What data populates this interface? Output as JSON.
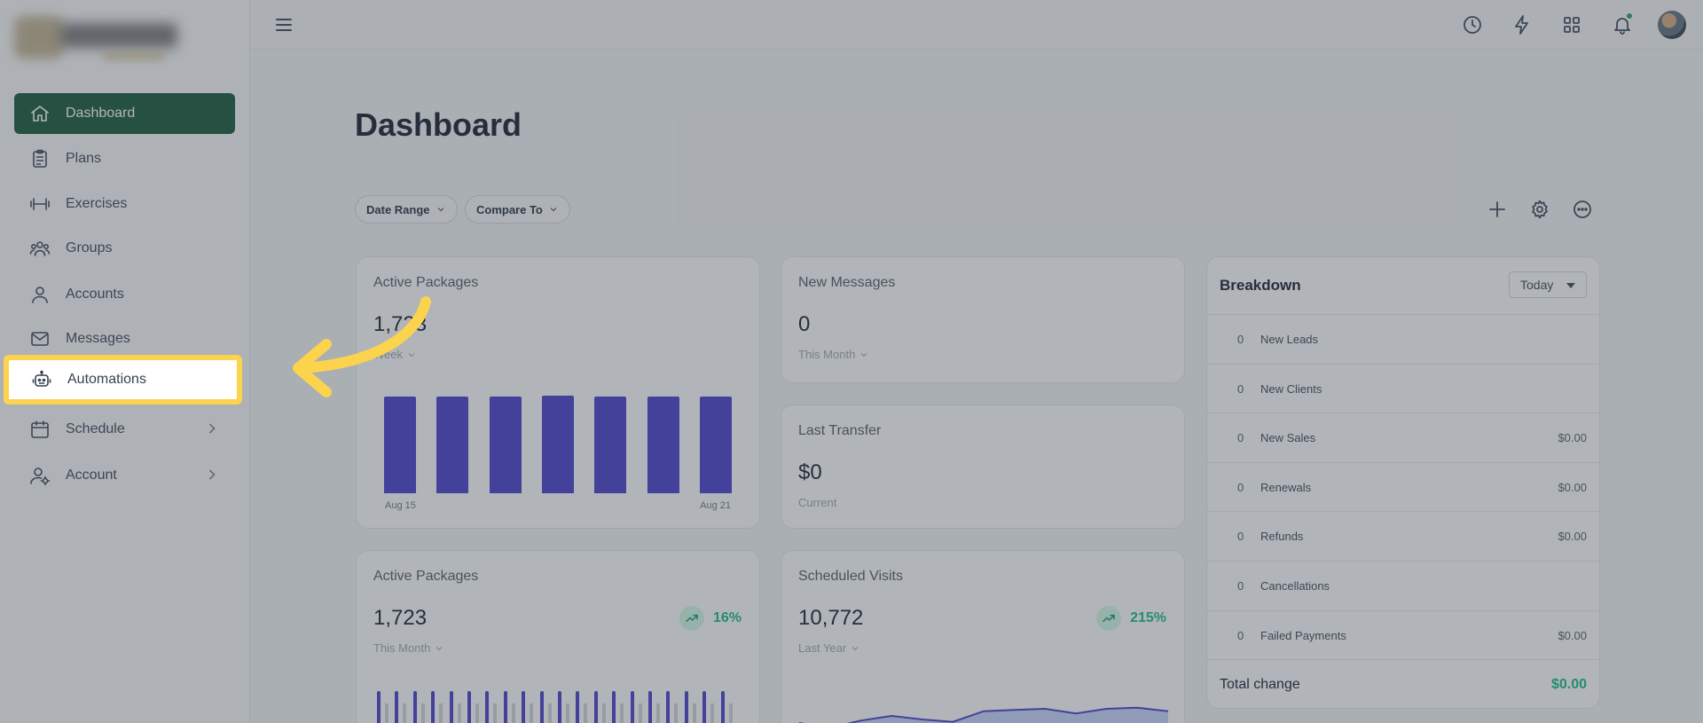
{
  "sidebar": {
    "items": [
      {
        "label": "Dashboard",
        "icon": "home-icon"
      },
      {
        "label": "Plans",
        "icon": "clipboard-icon"
      },
      {
        "label": "Exercises",
        "icon": "dumbbell-icon"
      },
      {
        "label": "Groups",
        "icon": "users-icon"
      },
      {
        "label": "Accounts",
        "icon": "user-icon"
      },
      {
        "label": "Messages",
        "icon": "mail-icon"
      },
      {
        "label": "Automations",
        "icon": "robot-icon"
      },
      {
        "label": "Schedule",
        "icon": "calendar-icon"
      },
      {
        "label": "Account",
        "icon": "user-gear-icon"
      }
    ]
  },
  "topbar": {
    "icons": [
      "menu-icon",
      "clock-icon",
      "bolt-icon",
      "grid-icon",
      "bell-icon",
      "avatar"
    ]
  },
  "main": {
    "title": "Dashboard",
    "filters": {
      "date_range": "Date Range",
      "compare_to": "Compare To"
    },
    "toolbar_icons": [
      "plus-icon",
      "gear-icon",
      "more-icon"
    ]
  },
  "cards": {
    "active_packages_1": {
      "title": "Active Packages",
      "value": "1,723",
      "sub": "Week",
      "axis_start": "Aug 15",
      "axis_end": "Aug 21",
      "chart_data": {
        "type": "bar",
        "values": [
          100,
          100,
          100,
          101,
          100,
          100,
          100
        ]
      }
    },
    "new_messages": {
      "title": "New Messages",
      "value": "0",
      "sub": "This Month"
    },
    "last_transfer": {
      "title": "Last Transfer",
      "value": "$0",
      "sub": "Current"
    },
    "active_packages_2": {
      "title": "Active Packages",
      "value": "1,723",
      "sub": "This Month",
      "trend": "16%",
      "chart_data": {
        "type": "bar",
        "values": [
          40,
          40,
          40,
          40,
          40,
          40,
          40,
          40,
          40,
          40,
          40,
          40,
          40,
          40,
          40,
          40,
          40,
          40,
          40,
          40
        ]
      }
    },
    "scheduled_visits": {
      "title": "Scheduled Visits",
      "value": "10,772",
      "sub": "Last Year",
      "trend": "215%",
      "chart_data": {
        "type": "area",
        "values": [
          12,
          8,
          14,
          18,
          15,
          13,
          22,
          23,
          24,
          20,
          24,
          25,
          22
        ]
      }
    }
  },
  "breakdown": {
    "title": "Breakdown",
    "period": "Today",
    "rows": [
      {
        "count": "0",
        "label": "New Leads",
        "amount": ""
      },
      {
        "count": "0",
        "label": "New Clients",
        "amount": ""
      },
      {
        "count": "0",
        "label": "New Sales",
        "amount": "$0.00"
      },
      {
        "count": "0",
        "label": "Renewals",
        "amount": "$0.00"
      },
      {
        "count": "0",
        "label": "Refunds",
        "amount": "$0.00"
      },
      {
        "count": "0",
        "label": "Cancellations",
        "amount": ""
      },
      {
        "count": "0",
        "label": "Failed Payments",
        "amount": "$0.00"
      }
    ],
    "total_label": "Total change",
    "total_amount": "$0.00"
  },
  "colors": {
    "accent_green": "#0f5132",
    "highlight_yellow": "#fcd34d",
    "bar_indigo": "#4338ca",
    "trend_green": "#10b981"
  }
}
